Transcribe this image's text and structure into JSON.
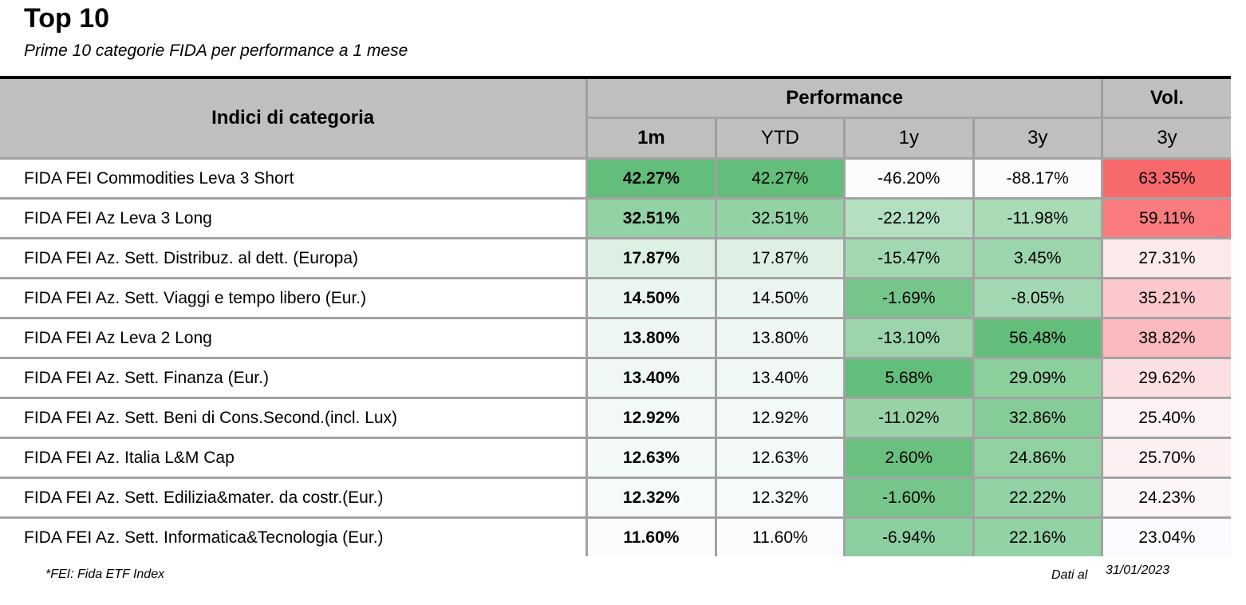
{
  "header": {
    "title": "Top 10",
    "subtitle": "Prime 10 categorie FIDA per performance a 1 mese"
  },
  "table": {
    "name_header": "Indici di categoria",
    "group_performance": "Performance",
    "group_vol": "Vol.",
    "sub_headers": [
      "1m",
      "YTD",
      "1y",
      "3y",
      "3y"
    ]
  },
  "chart_data": {
    "type": "table",
    "title": "Top 10",
    "subtitle": "Prime 10 categorie FIDA per performance a 1 mese",
    "columns": [
      "Indici di categoria",
      "1m",
      "YTD",
      "1y",
      "3y",
      "Vol. 3y"
    ],
    "rows": [
      {
        "name": "FIDA FEI Commodities Leva 3 Short",
        "values": [
          "42.27%",
          "42.27%",
          "-46.20%",
          "-88.17%",
          "63.35%"
        ],
        "colors": [
          "#63be7b",
          "#63be7b",
          "#fcfcff",
          "#fcfcff",
          "#f8696b"
        ]
      },
      {
        "name": "FIDA FEI Az Leva 3 Long",
        "values": [
          "32.51%",
          "32.51%",
          "-22.12%",
          "-11.98%",
          "59.11%"
        ],
        "colors": [
          "#93d2a4",
          "#93d2a4",
          "#b4e0c1",
          "#a8dbb6",
          "#f97b7e"
        ]
      },
      {
        "name": "FIDA FEI Az. Sett. Distribuz. al dett. (Europa)",
        "values": [
          "17.87%",
          "17.87%",
          "-15.47%",
          "3.45%",
          "27.31%"
        ],
        "colors": [
          "#ddf0e3",
          "#ddf0e3",
          "#a2d8b1",
          "#9bd5ab",
          "#fce9ec"
        ]
      },
      {
        "name": "FIDA FEI Az. Sett. Viaggi e tempo libero (Eur.)",
        "values": [
          "14.50%",
          "14.50%",
          "-1.69%",
          "-8.05%",
          "35.21%"
        ],
        "colors": [
          "#ecf6f0",
          "#ecf6f0",
          "#76c68b",
          "#a2d8b1",
          "#fbc8cb"
        ]
      },
      {
        "name": "FIDA FEI Az Leva 2 Long",
        "values": [
          "13.80%",
          "13.80%",
          "-13.10%",
          "56.48%",
          "38.82%"
        ],
        "colors": [
          "#eff7f3",
          "#eff7f3",
          "#9cd5ac",
          "#63be7b",
          "#fbbabd"
        ]
      },
      {
        "name": "FIDA FEI Az. Sett. Finanza (Eur.)",
        "values": [
          "13.40%",
          "13.40%",
          "5.68%",
          "29.09%",
          "29.62%"
        ],
        "colors": [
          "#f0f8f4",
          "#f0f8f4",
          "#63be7b",
          "#8bcf9d",
          "#fcdfe2"
        ]
      },
      {
        "name": "FIDA FEI Az. Sett. Beni di Cons.Second.(incl. Lux)",
        "values": [
          "12.92%",
          "12.92%",
          "-11.02%",
          "32.86%",
          "25.40%"
        ],
        "colors": [
          "#f3f9f6",
          "#f3f9f6",
          "#97d3a7",
          "#85cc98",
          "#fcf1f4"
        ]
      },
      {
        "name": "FIDA FEI Az. Italia L&M Cap",
        "values": [
          "12.63%",
          "12.63%",
          "2.60%",
          "24.86%",
          "25.70%"
        ],
        "colors": [
          "#f4fafa",
          "#f4fafa",
          "#6ac17f",
          "#91d1a2",
          "#fcf0f3"
        ]
      },
      {
        "name": "FIDA FEI Az. Sett. Edilizia&mater. da costr.(Eur.)",
        "values": [
          "12.32%",
          "12.32%",
          "-1.60%",
          "22.22%",
          "24.23%"
        ],
        "colors": [
          "#f6fafa",
          "#f6fafa",
          "#76c68b",
          "#93d2a4",
          "#fcf5f8"
        ]
      },
      {
        "name": "FIDA FEI Az. Sett. Informatica&Tecnologia (Eur.)",
        "values": [
          "11.60%",
          "11.60%",
          "-6.94%",
          "22.16%",
          "23.04%"
        ],
        "colors": [
          "#f9fbfc",
          "#f9fbfc",
          "#8ccfa0",
          "#93d2a4",
          "#fcfaff"
        ]
      }
    ]
  },
  "footer": {
    "note": "*FEI: Fida ETF Index",
    "dati_label": "Dati al",
    "date": "31/01/2023"
  }
}
